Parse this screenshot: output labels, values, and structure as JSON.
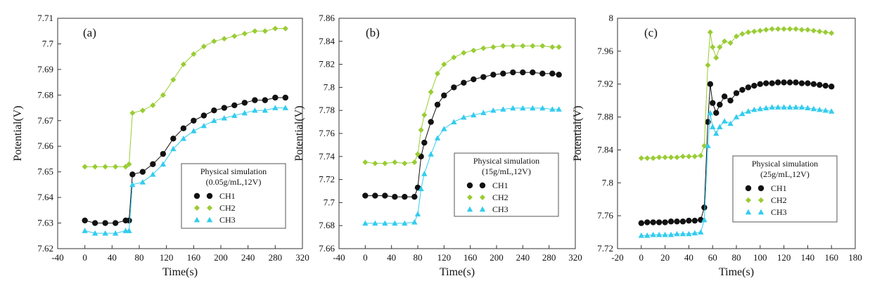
{
  "chart_data": [
    {
      "type": "scatter",
      "label": "(a)",
      "xlabel": "Time(s)",
      "ylabel": "Potential(V)",
      "xlim": [
        -40,
        320
      ],
      "ylim": [
        7.62,
        7.71
      ],
      "xticks": [
        -40,
        0,
        40,
        80,
        120,
        160,
        200,
        240,
        280,
        320
      ],
      "yticks": [
        7.62,
        7.63,
        7.64,
        7.65,
        7.66,
        7.67,
        7.68,
        7.69,
        7.7,
        7.71
      ],
      "ytick_labels": [
        "7.62",
        "7.63",
        "7.64",
        "7.65",
        "7.66",
        "7.67",
        "7.68",
        "7.69",
        "7.7",
        "7.71"
      ],
      "legend_title": [
        "Physical simulation",
        "(0.05g/mL,12V)"
      ],
      "legend_placement": "center-right",
      "grid": false,
      "series": [
        {
          "name": "CH1",
          "color": "#111111",
          "marker": "circle",
          "x": [
            0,
            15,
            30,
            45,
            60,
            65,
            70,
            85,
            100,
            115,
            130,
            145,
            160,
            175,
            190,
            205,
            220,
            235,
            250,
            265,
            280,
            295
          ],
          "y": [
            7.631,
            7.63,
            7.63,
            7.63,
            7.631,
            7.631,
            7.649,
            7.65,
            7.653,
            7.657,
            7.663,
            7.667,
            7.67,
            7.672,
            7.674,
            7.675,
            7.676,
            7.677,
            7.678,
            7.678,
            7.679,
            7.679
          ]
        },
        {
          "name": "CH2",
          "color": "#99cc33",
          "marker": "diamond",
          "x": [
            0,
            15,
            30,
            45,
            60,
            65,
            70,
            85,
            100,
            115,
            130,
            145,
            160,
            175,
            190,
            205,
            220,
            235,
            250,
            265,
            280,
            295
          ],
          "y": [
            7.652,
            7.652,
            7.652,
            7.652,
            7.652,
            7.653,
            7.673,
            7.674,
            7.676,
            7.68,
            7.686,
            7.692,
            7.696,
            7.699,
            7.701,
            7.702,
            7.703,
            7.704,
            7.705,
            7.705,
            7.706,
            7.706
          ]
        },
        {
          "name": "CH3",
          "color": "#33ccee",
          "marker": "triangle",
          "x": [
            0,
            15,
            30,
            45,
            60,
            65,
            70,
            85,
            100,
            115,
            130,
            145,
            160,
            175,
            190,
            205,
            220,
            235,
            250,
            265,
            280,
            295
          ],
          "y": [
            7.627,
            7.626,
            7.626,
            7.626,
            7.627,
            7.627,
            7.645,
            7.646,
            7.649,
            7.653,
            7.659,
            7.663,
            7.666,
            7.668,
            7.67,
            7.671,
            7.672,
            7.673,
            7.674,
            7.674,
            7.675,
            7.675
          ]
        }
      ]
    },
    {
      "type": "scatter",
      "label": "(b)",
      "xlabel": "Time(s)",
      "ylabel": "Potential(V)",
      "xlim": [
        -40,
        320
      ],
      "ylim": [
        7.66,
        7.86
      ],
      "xticks": [
        -40,
        0,
        40,
        80,
        120,
        160,
        200,
        240,
        280,
        320
      ],
      "yticks": [
        7.66,
        7.68,
        7.7,
        7.72,
        7.74,
        7.76,
        7.78,
        7.8,
        7.82,
        7.84,
        7.86
      ],
      "ytick_labels": [
        "7.66",
        "7.68",
        "7.7",
        "7.72",
        "7.74",
        "7.76",
        "7.78",
        "7.8",
        "7.82",
        "7.84",
        "7.86"
      ],
      "legend_title": [
        "Physical simulation",
        "(15g/mL,12V)"
      ],
      "legend_placement": "center-right",
      "grid": false,
      "series": [
        {
          "name": "CH1",
          "color": "#111111",
          "marker": "circle",
          "x": [
            0,
            15,
            30,
            45,
            60,
            75,
            80,
            85,
            90,
            100,
            110,
            120,
            135,
            150,
            165,
            180,
            195,
            210,
            225,
            240,
            255,
            270,
            285,
            295
          ],
          "y": [
            7.706,
            7.706,
            7.706,
            7.705,
            7.705,
            7.705,
            7.713,
            7.74,
            7.752,
            7.77,
            7.785,
            7.793,
            7.8,
            7.804,
            7.807,
            7.809,
            7.811,
            7.812,
            7.813,
            7.813,
            7.813,
            7.812,
            7.812,
            7.811
          ]
        },
        {
          "name": "CH2",
          "color": "#99cc33",
          "marker": "diamond",
          "x": [
            0,
            15,
            30,
            45,
            60,
            75,
            80,
            85,
            90,
            100,
            110,
            120,
            135,
            150,
            165,
            180,
            195,
            210,
            225,
            240,
            255,
            270,
            285,
            295
          ],
          "y": [
            7.735,
            7.734,
            7.734,
            7.735,
            7.734,
            7.735,
            7.742,
            7.763,
            7.776,
            7.796,
            7.812,
            7.82,
            7.826,
            7.83,
            7.832,
            7.834,
            7.835,
            7.836,
            7.836,
            7.836,
            7.836,
            7.836,
            7.835,
            7.835
          ]
        },
        {
          "name": "CH3",
          "color": "#33ccee",
          "marker": "triangle",
          "x": [
            0,
            15,
            30,
            45,
            60,
            75,
            80,
            85,
            90,
            100,
            110,
            120,
            135,
            150,
            165,
            180,
            195,
            210,
            225,
            240,
            255,
            270,
            285,
            295
          ],
          "y": [
            7.682,
            7.682,
            7.682,
            7.682,
            7.682,
            7.683,
            7.69,
            7.712,
            7.725,
            7.742,
            7.756,
            7.764,
            7.77,
            7.774,
            7.776,
            7.778,
            7.78,
            7.781,
            7.782,
            7.782,
            7.782,
            7.782,
            7.781,
            7.781
          ]
        }
      ]
    },
    {
      "type": "scatter",
      "label": "(c)",
      "xlabel": "Time(s)",
      "ylabel": "Potential(V)",
      "xlim": [
        -20,
        180
      ],
      "ylim": [
        7.72,
        8.0
      ],
      "xticks": [
        -20,
        0,
        20,
        40,
        60,
        80,
        100,
        120,
        140,
        160,
        180
      ],
      "yticks": [
        7.72,
        7.76,
        7.8,
        7.84,
        7.88,
        7.92,
        7.96,
        8.0
      ],
      "ytick_labels": [
        "7.72",
        "7.76",
        "7.8",
        "7.84",
        "7.88",
        "7.92",
        "7.96",
        "8"
      ],
      "legend_title": [
        "Physical simulation",
        "(25g/mL,12V)"
      ],
      "legend_placement": "center-right",
      "grid": false,
      "series": [
        {
          "name": "CH1",
          "color": "#111111",
          "marker": "circle",
          "x": [
            0,
            5,
            10,
            15,
            20,
            25,
            30,
            35,
            40,
            45,
            50,
            53,
            56,
            58,
            60,
            63,
            66,
            70,
            75,
            80,
            85,
            90,
            95,
            100,
            105,
            110,
            115,
            120,
            125,
            130,
            135,
            140,
            145,
            150,
            155,
            160
          ],
          "y": [
            7.751,
            7.752,
            7.752,
            7.752,
            7.752,
            7.753,
            7.753,
            7.753,
            7.754,
            7.754,
            7.755,
            7.77,
            7.874,
            7.92,
            7.897,
            7.885,
            7.895,
            7.905,
            7.9,
            7.909,
            7.913,
            7.916,
            7.918,
            7.92,
            7.921,
            7.921,
            7.922,
            7.922,
            7.922,
            7.922,
            7.921,
            7.921,
            7.92,
            7.919,
            7.918,
            7.917
          ]
        },
        {
          "name": "CH2",
          "color": "#99cc33",
          "marker": "diamond",
          "x": [
            0,
            5,
            10,
            15,
            20,
            25,
            30,
            35,
            40,
            45,
            50,
            53,
            56,
            58,
            60,
            63,
            66,
            70,
            75,
            80,
            85,
            90,
            95,
            100,
            105,
            110,
            115,
            120,
            125,
            130,
            135,
            140,
            145,
            150,
            155,
            160
          ],
          "y": [
            7.83,
            7.83,
            7.83,
            7.831,
            7.831,
            7.831,
            7.831,
            7.832,
            7.832,
            7.832,
            7.833,
            7.845,
            7.943,
            7.983,
            7.965,
            7.952,
            7.965,
            7.972,
            7.97,
            7.978,
            7.981,
            7.983,
            7.984,
            7.985,
            7.986,
            7.987,
            7.987,
            7.987,
            7.987,
            7.987,
            7.986,
            7.986,
            7.985,
            7.984,
            7.983,
            7.982
          ]
        },
        {
          "name": "CH3",
          "color": "#33ccee",
          "marker": "triangle",
          "x": [
            0,
            5,
            10,
            15,
            20,
            25,
            30,
            35,
            40,
            45,
            50,
            53,
            56,
            58,
            60,
            63,
            66,
            70,
            75,
            80,
            85,
            90,
            95,
            100,
            105,
            110,
            115,
            120,
            125,
            130,
            135,
            140,
            145,
            150,
            155,
            160
          ],
          "y": [
            7.736,
            7.736,
            7.737,
            7.737,
            7.737,
            7.737,
            7.738,
            7.738,
            7.738,
            7.739,
            7.74,
            7.755,
            7.845,
            7.885,
            7.868,
            7.86,
            7.868,
            7.875,
            7.872,
            7.88,
            7.884,
            7.887,
            7.889,
            7.89,
            7.891,
            7.892,
            7.892,
            7.892,
            7.892,
            7.892,
            7.892,
            7.891,
            7.89,
            7.889,
            7.888,
            7.887
          ]
        }
      ]
    }
  ]
}
